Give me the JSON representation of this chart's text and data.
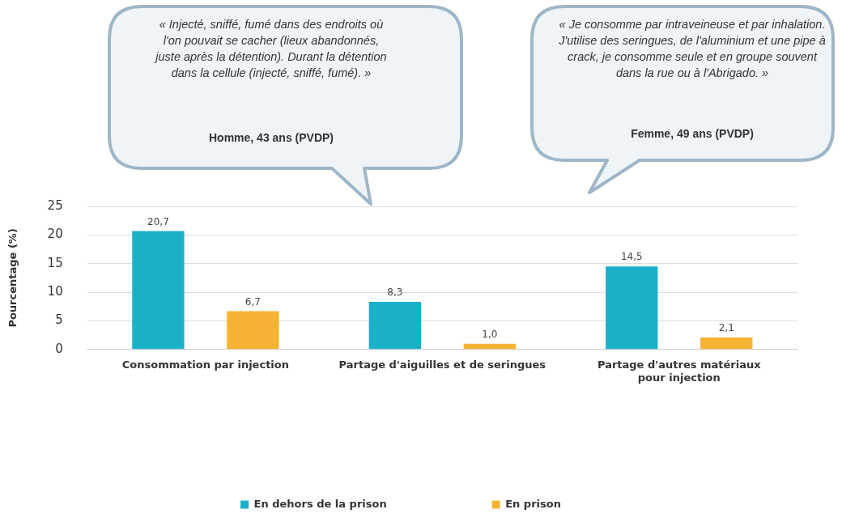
{
  "chart_data": {
    "type": "bar",
    "ylabel": "Pourcentage (%)",
    "categories": [
      "Consommation par injection",
      "Partage d'aiguilles et de seringues",
      "Partage d'autres matériaux pour injection"
    ],
    "series": [
      {
        "name": "En dehors de la prison",
        "color": "#1ab0c8",
        "values": [
          20.7,
          8.3,
          14.5
        ],
        "value_labels": [
          "20,7",
          "8,3",
          "14,5"
        ]
      },
      {
        "name": "En prison",
        "color": "#f6b232",
        "values": [
          6.7,
          1.0,
          2.1
        ],
        "value_labels": [
          "6,7",
          "1,0",
          "2,1"
        ]
      }
    ],
    "ylim": [
      0,
      25
    ],
    "yticks": [
      0,
      5,
      10,
      15,
      20,
      25
    ],
    "grid": "y",
    "legend": "bottom",
    "annotations": [
      "« Injecté, sniffé, fumé dans des endroits où l'on pouvait se cacher (lieux abandonnés, juste après la détention). Durant la détention dans la cellule (injecté, sniffé, fumé). »",
      "Homme, 43 ans (PVDP)",
      "« Je consomme par intraveineuse et par inhalation. J'utilise des seringues, de l'aluminium et une pipe à crack, je consomme seule et en groupe souvent dans la rue ou à l'Abrigado. »",
      "Femme, 49 ans (PVDP)"
    ]
  }
}
